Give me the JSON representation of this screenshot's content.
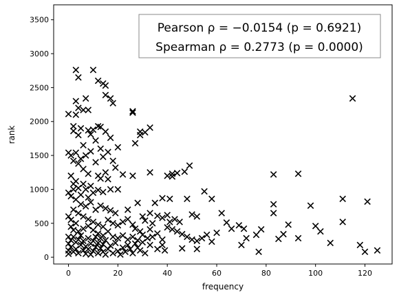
{
  "chart_data": {
    "type": "scatter",
    "title": "",
    "xlabel": "frequency",
    "ylabel": "rank",
    "xlim": [
      -6,
      131
    ],
    "ylim": [
      -100,
      3720
    ],
    "xticks": [
      0,
      20,
      40,
      60,
      80,
      100,
      120
    ],
    "yticks": [
      0,
      500,
      1000,
      1500,
      2000,
      2500,
      3000,
      3500
    ],
    "grid": false,
    "marker": "x",
    "color": "#000000",
    "annotation": {
      "line1": "Pearson ρ = −0.0154 (p = 0.6921)",
      "line2": "Spearman ρ = 0.2773 (p = 0.0000)",
      "placement": "top-right"
    },
    "points": [
      [
        3,
        2760
      ],
      [
        10,
        2760
      ],
      [
        4,
        2650
      ],
      [
        12,
        2600
      ],
      [
        14,
        2560
      ],
      [
        15,
        2530
      ],
      [
        7,
        2340
      ],
      [
        15,
        2390
      ],
      [
        17,
        2340
      ],
      [
        3,
        2300
      ],
      [
        4,
        2200
      ],
      [
        18,
        2270
      ],
      [
        6,
        2170
      ],
      [
        8,
        2170
      ],
      [
        3,
        2100
      ],
      [
        26,
        2150
      ],
      [
        26,
        2130
      ],
      [
        0,
        2110
      ],
      [
        115,
        2340
      ],
      [
        2,
        1930
      ],
      [
        2,
        1860
      ],
      [
        4,
        1800
      ],
      [
        5,
        1900
      ],
      [
        8,
        1870
      ],
      [
        10,
        1880
      ],
      [
        12,
        1930
      ],
      [
        13,
        1920
      ],
      [
        15,
        1850
      ],
      [
        9,
        1810
      ],
      [
        6,
        1650
      ],
      [
        11,
        1720
      ],
      [
        13,
        1600
      ],
      [
        17,
        1760
      ],
      [
        20,
        1620
      ],
      [
        29,
        1850
      ],
      [
        29,
        1800
      ],
      [
        31,
        1840
      ],
      [
        33,
        1910
      ],
      [
        27,
        1680
      ],
      [
        0,
        1540
      ],
      [
        1,
        1500
      ],
      [
        3,
        1540
      ],
      [
        5,
        1450
      ],
      [
        2,
        1420
      ],
      [
        7,
        1500
      ],
      [
        9,
        1560
      ],
      [
        4,
        1380
      ],
      [
        11,
        1400
      ],
      [
        14,
        1480
      ],
      [
        16,
        1550
      ],
      [
        18,
        1420
      ],
      [
        19,
        1320
      ],
      [
        6,
        1300
      ],
      [
        8,
        1230
      ],
      [
        12,
        1200
      ],
      [
        13,
        1160
      ],
      [
        15,
        1250
      ],
      [
        16,
        1150
      ],
      [
        1,
        1200
      ],
      [
        3,
        1120
      ],
      [
        2,
        1080
      ],
      [
        4,
        1020
      ],
      [
        6,
        1080
      ],
      [
        7,
        1000
      ],
      [
        9,
        1050
      ],
      [
        10,
        950
      ],
      [
        5,
        920
      ],
      [
        8,
        880
      ],
      [
        12,
        990
      ],
      [
        14,
        960
      ],
      [
        17,
        1000
      ],
      [
        20,
        1000
      ],
      [
        22,
        1220
      ],
      [
        26,
        1200
      ],
      [
        33,
        1250
      ],
      [
        40,
        1200
      ],
      [
        42,
        1190
      ],
      [
        42,
        1230
      ],
      [
        44,
        1240
      ],
      [
        47,
        1260
      ],
      [
        49,
        1350
      ],
      [
        55,
        970
      ],
      [
        58,
        860
      ],
      [
        83,
        1220
      ],
      [
        93,
        1230
      ],
      [
        2,
        1000
      ],
      [
        0,
        950
      ],
      [
        1,
        900
      ],
      [
        3,
        850
      ],
      [
        5,
        780
      ],
      [
        7,
        750
      ],
      [
        9,
        810
      ],
      [
        11,
        700
      ],
      [
        13,
        760
      ],
      [
        15,
        720
      ],
      [
        17,
        690
      ],
      [
        19,
        650
      ],
      [
        2,
        700
      ],
      [
        4,
        650
      ],
      [
        6,
        600
      ],
      [
        8,
        560
      ],
      [
        10,
        520
      ],
      [
        12,
        480
      ],
      [
        14,
        450
      ],
      [
        16,
        550
      ],
      [
        18,
        500
      ],
      [
        20,
        470
      ],
      [
        22,
        520
      ],
      [
        24,
        560
      ],
      [
        26,
        480
      ],
      [
        27,
        420
      ],
      [
        29,
        380
      ],
      [
        30,
        600
      ],
      [
        31,
        540
      ],
      [
        33,
        650
      ],
      [
        34,
        500
      ],
      [
        36,
        610
      ],
      [
        38,
        580
      ],
      [
        40,
        620
      ],
      [
        41,
        520
      ],
      [
        43,
        560
      ],
      [
        45,
        520
      ],
      [
        48,
        860
      ],
      [
        50,
        630
      ],
      [
        52,
        600
      ],
      [
        38,
        870
      ],
      [
        41,
        860
      ],
      [
        35,
        800
      ],
      [
        28,
        800
      ],
      [
        24,
        700
      ],
      [
        33,
        410
      ],
      [
        0,
        600
      ],
      [
        1,
        550
      ],
      [
        3,
        500
      ],
      [
        1,
        450
      ],
      [
        2,
        400
      ],
      [
        4,
        380
      ],
      [
        6,
        420
      ],
      [
        8,
        460
      ],
      [
        10,
        400
      ],
      [
        12,
        350
      ],
      [
        14,
        320
      ],
      [
        16,
        380
      ],
      [
        18,
        300
      ],
      [
        20,
        280
      ],
      [
        22,
        320
      ],
      [
        24,
        260
      ],
      [
        26,
        300
      ],
      [
        28,
        250
      ],
      [
        30,
        330
      ],
      [
        32,
        280
      ],
      [
        34,
        300
      ],
      [
        36,
        350
      ],
      [
        38,
        260
      ],
      [
        40,
        440
      ],
      [
        42,
        410
      ],
      [
        44,
        380
      ],
      [
        46,
        340
      ],
      [
        48,
        300
      ],
      [
        50,
        260
      ],
      [
        52,
        240
      ],
      [
        54,
        280
      ],
      [
        56,
        330
      ],
      [
        58,
        230
      ],
      [
        60,
        360
      ],
      [
        62,
        650
      ],
      [
        64,
        510
      ],
      [
        66,
        420
      ],
      [
        69,
        470
      ],
      [
        71,
        420
      ],
      [
        70,
        180
      ],
      [
        72,
        280
      ],
      [
        76,
        330
      ],
      [
        78,
        410
      ],
      [
        77,
        80
      ],
      [
        83,
        780
      ],
      [
        83,
        650
      ],
      [
        85,
        270
      ],
      [
        87,
        340
      ],
      [
        89,
        480
      ],
      [
        93,
        280
      ],
      [
        98,
        760
      ],
      [
        100,
        460
      ],
      [
        102,
        380
      ],
      [
        106,
        210
      ],
      [
        111,
        860
      ],
      [
        111,
        520
      ],
      [
        118,
        180
      ],
      [
        120,
        80
      ],
      [
        121,
        820
      ],
      [
        125,
        100
      ],
      [
        0,
        300
      ],
      [
        0,
        200
      ],
      [
        0,
        100
      ],
      [
        0,
        50
      ],
      [
        1,
        250
      ],
      [
        1,
        150
      ],
      [
        2,
        80
      ],
      [
        2,
        300
      ],
      [
        3,
        220
      ],
      [
        3,
        120
      ],
      [
        4,
        60
      ],
      [
        4,
        260
      ],
      [
        5,
        180
      ],
      [
        5,
        320
      ],
      [
        6,
        100
      ],
      [
        6,
        240
      ],
      [
        7,
        50
      ],
      [
        7,
        160
      ],
      [
        8,
        280
      ],
      [
        8,
        120
      ],
      [
        9,
        40
      ],
      [
        9,
        200
      ],
      [
        10,
        90
      ],
      [
        10,
        240
      ],
      [
        11,
        150
      ],
      [
        11,
        300
      ],
      [
        12,
        60
      ],
      [
        12,
        210
      ],
      [
        13,
        130
      ],
      [
        13,
        280
      ],
      [
        14,
        80
      ],
      [
        14,
        190
      ],
      [
        15,
        40
      ],
      [
        15,
        250
      ],
      [
        16,
        120
      ],
      [
        17,
        170
      ],
      [
        18,
        60
      ],
      [
        19,
        210
      ],
      [
        20,
        90
      ],
      [
        21,
        40
      ],
      [
        22,
        140
      ],
      [
        23,
        80
      ],
      [
        24,
        180
      ],
      [
        25,
        120
      ],
      [
        26,
        60
      ],
      [
        27,
        200
      ],
      [
        28,
        140
      ],
      [
        29,
        100
      ],
      [
        30,
        220
      ],
      [
        31,
        60
      ],
      [
        33,
        180
      ],
      [
        36,
        120
      ],
      [
        38,
        180
      ],
      [
        39,
        100
      ],
      [
        46,
        130
      ],
      [
        52,
        120
      ]
    ]
  }
}
